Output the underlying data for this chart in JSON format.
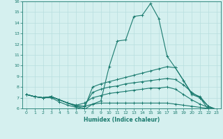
{
  "xlabel": "Humidex (Indice chaleur)",
  "x": [
    0,
    1,
    2,
    3,
    4,
    5,
    6,
    7,
    8,
    9,
    10,
    11,
    12,
    13,
    14,
    15,
    16,
    17,
    18,
    19,
    20,
    21,
    22,
    23
  ],
  "curves": [
    [
      7.3,
      7.1,
      7.0,
      7.0,
      6.6,
      6.3,
      6.1,
      5.9,
      6.4,
      6.7,
      9.9,
      12.3,
      12.4,
      14.6,
      14.7,
      15.8,
      14.4,
      10.9,
      9.8,
      8.6,
      7.3,
      7.0,
      5.9,
      null
    ],
    [
      7.3,
      7.1,
      7.0,
      7.1,
      6.8,
      6.5,
      6.2,
      6.0,
      8.0,
      8.3,
      8.5,
      8.7,
      8.9,
      9.1,
      9.3,
      9.5,
      9.7,
      9.9,
      9.8,
      8.6,
      7.4,
      7.1,
      6.2,
      5.9
    ],
    [
      7.3,
      7.1,
      7.0,
      7.1,
      6.8,
      6.5,
      6.3,
      6.2,
      7.5,
      7.8,
      8.0,
      8.1,
      8.3,
      8.4,
      8.5,
      8.6,
      8.7,
      8.8,
      8.7,
      8.2,
      7.5,
      7.0,
      6.2,
      5.9
    ],
    [
      7.3,
      7.1,
      7.0,
      7.1,
      6.8,
      6.5,
      6.3,
      6.5,
      7.0,
      7.2,
      7.4,
      7.5,
      7.6,
      7.7,
      7.8,
      7.9,
      7.9,
      8.0,
      7.8,
      7.3,
      6.8,
      6.4,
      6.1,
      5.9
    ],
    [
      7.3,
      7.1,
      7.0,
      7.1,
      6.8,
      6.5,
      6.2,
      6.2,
      6.4,
      6.5,
      6.5,
      6.5,
      6.5,
      6.5,
      6.5,
      6.5,
      6.5,
      6.5,
      6.4,
      6.3,
      6.2,
      6.1,
      6.0,
      5.9
    ]
  ],
  "line_color": "#1a7a6e",
  "bg_color": "#d5f0ef",
  "grid_color": "#b8dede",
  "ylim": [
    6,
    16
  ],
  "xlim": [
    -0.5,
    23.5
  ],
  "yticks": [
    6,
    7,
    8,
    9,
    10,
    11,
    12,
    13,
    14,
    15,
    16
  ],
  "xticks": [
    0,
    1,
    2,
    3,
    4,
    5,
    6,
    7,
    8,
    9,
    10,
    11,
    12,
    13,
    14,
    15,
    16,
    17,
    18,
    19,
    20,
    21,
    22,
    23
  ]
}
